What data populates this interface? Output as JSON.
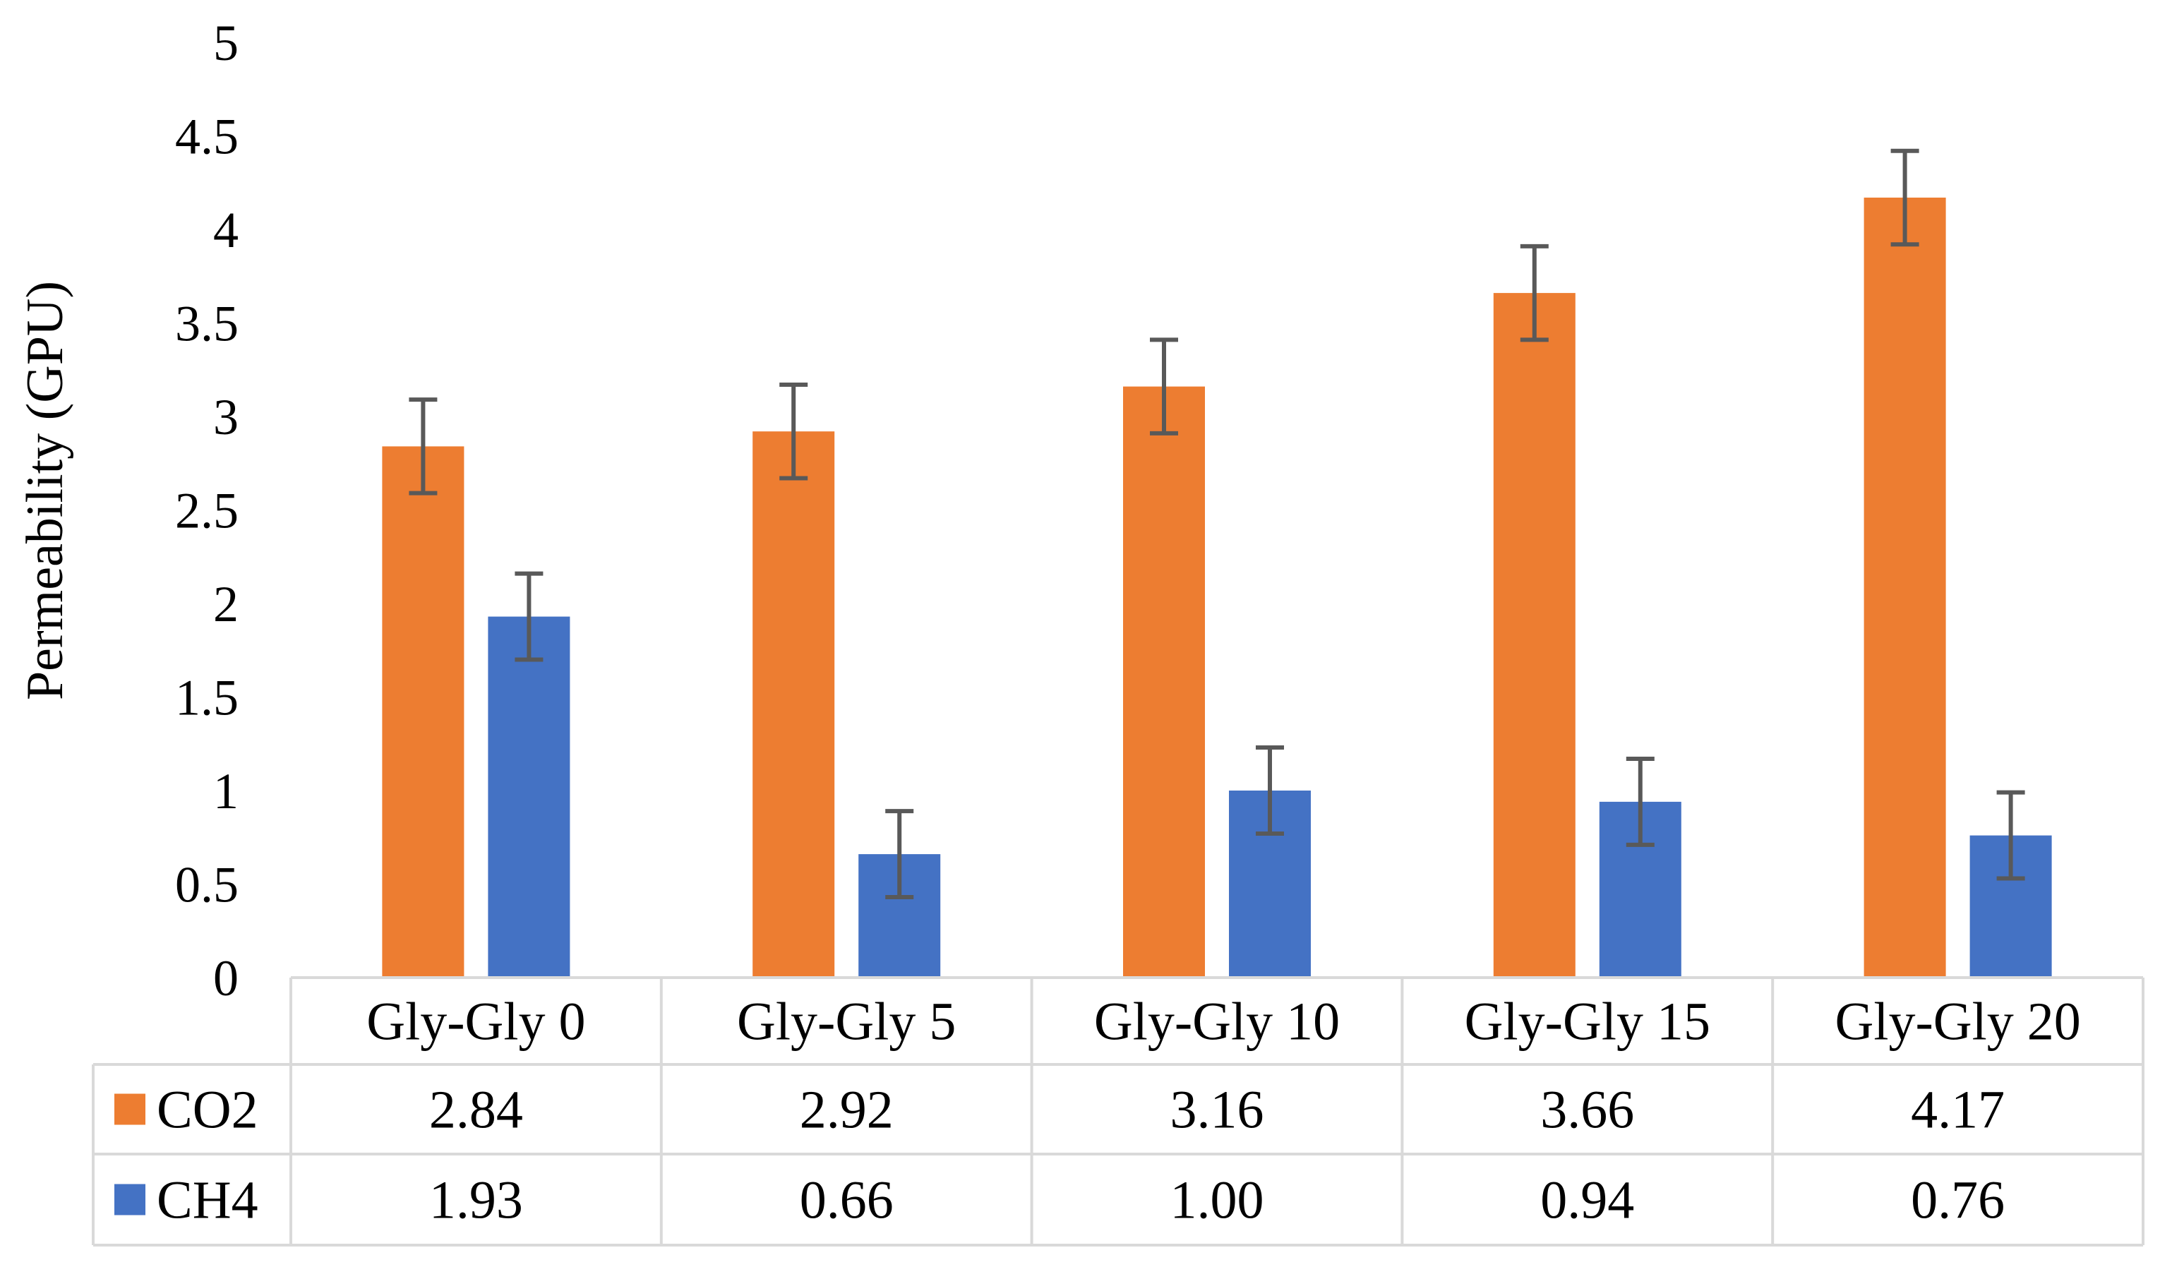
{
  "chart_data": {
    "type": "bar",
    "title": "",
    "xlabel": "",
    "ylabel": "Permeability (GPU)",
    "ylim": [
      0,
      5
    ],
    "yticks": [
      "0",
      "0.5",
      "1",
      "1.5",
      "2",
      "2.5",
      "3",
      "3.5",
      "4",
      "4.5",
      "5"
    ],
    "ytick_values": [
      0,
      0.5,
      1,
      1.5,
      2,
      2.5,
      3,
      3.5,
      4,
      4.5,
      5
    ],
    "grid": false,
    "legend": "data-table",
    "categories": [
      "Gly-Gly 0",
      "Gly-Gly 5",
      "Gly-Gly 10",
      "Gly-Gly 15",
      "Gly-Gly 20"
    ],
    "series": [
      {
        "name": "CO2",
        "color": "#ED7D31",
        "values": [
          2.84,
          2.92,
          3.16,
          3.66,
          4.17
        ],
        "labels": [
          "2.84",
          "2.92",
          "3.16",
          "3.66",
          "4.17"
        ],
        "error": [
          0.25,
          0.25,
          0.25,
          0.25,
          0.25
        ]
      },
      {
        "name": "CH4",
        "color": "#4472C4",
        "values": [
          1.93,
          0.66,
          1.0,
          0.94,
          0.76
        ],
        "labels": [
          "1.93",
          "0.66",
          "1.00",
          "0.94",
          "0.76"
        ],
        "error": [
          0.23,
          0.23,
          0.23,
          0.23,
          0.23
        ]
      }
    ],
    "error_bar_color": "#595959"
  }
}
